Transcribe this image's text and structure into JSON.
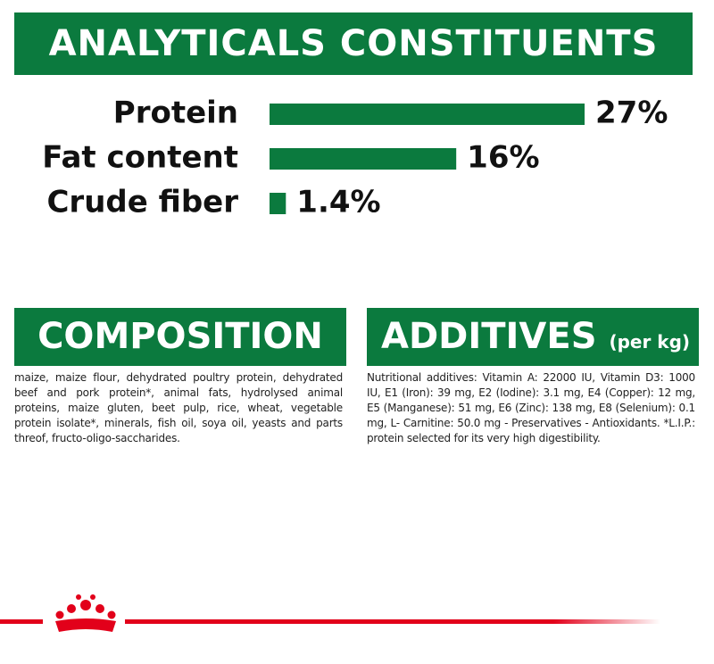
{
  "chart_data": {
    "type": "bar",
    "title": "ANALYTICALS CONSTITUENTS",
    "categories": [
      "Protein",
      "Fat content",
      "Crude fiber"
    ],
    "values": [
      27,
      16,
      1.4
    ],
    "value_labels": [
      "27%",
      "16%",
      "1.4%"
    ],
    "color": "#0b7a3e"
  },
  "composition": {
    "title": "COMPOSITION",
    "text": "maize, maize flour, dehydrated poultry protein, dehydrated beef and pork protein*, animal fats, hydrolysed animal proteins, maize gluten, beet pulp, rice, wheat, vegetable protein isolate*, minerals, fish oil, soya oil, yeasts and parts threof, fructo-oligo-saccharides."
  },
  "additives": {
    "title": "ADDITIVES",
    "subtitle": "(per kg)",
    "text": "Nutritional additives: Vitamin A: 22000 IU, Vitamin D3: 1000 IU, E1 (Iron): 39 mg, E2 (Iodine): 3.1 mg, E4 (Copper): 12 mg, E5 (Manganese): 51 mg, E6 (Zinc): 138 mg, E8 (Selenium): 0.1 mg, L- Carnitine: 50.0 mg - Preservatives - Antioxidants. *L.I.P.: protein selected for its very high digestibility."
  }
}
